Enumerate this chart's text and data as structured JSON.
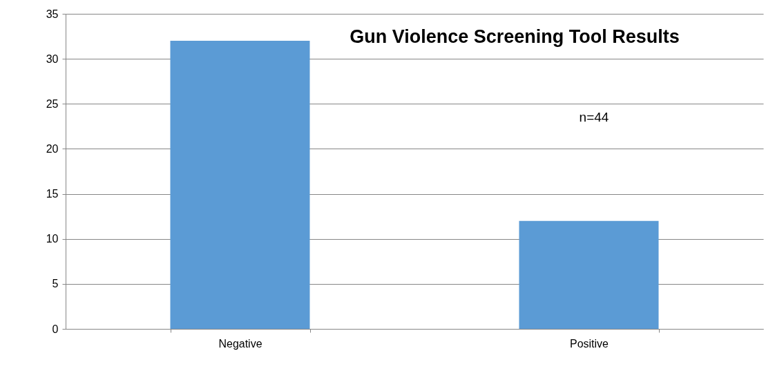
{
  "chart_data": {
    "type": "bar",
    "title": "Gun Violence Screening Tool Results",
    "annotations": [
      "n=44"
    ],
    "categories": [
      "Negative",
      "Positive"
    ],
    "values": [
      32,
      12
    ],
    "color": "#5b9bd5",
    "ylim": [
      0,
      35
    ],
    "yticks": [
      0,
      5,
      10,
      15,
      20,
      25,
      30,
      35
    ],
    "grid": "y"
  }
}
